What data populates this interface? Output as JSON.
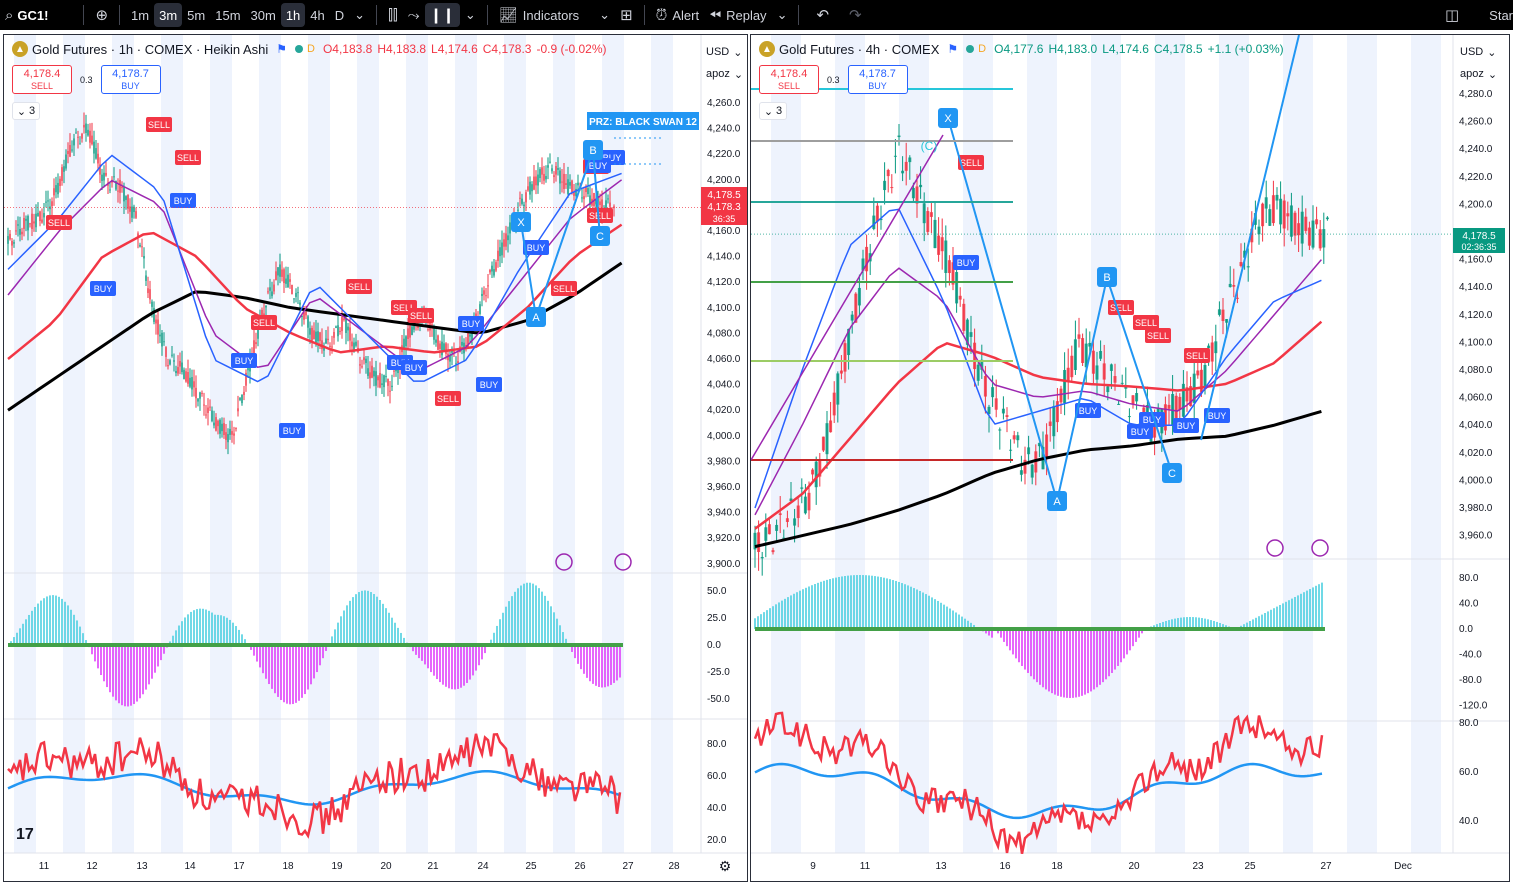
{
  "toolbar": {
    "symbol": "GC1!",
    "timeframes": [
      "1m",
      "3m",
      "5m",
      "15m",
      "30m",
      "1h",
      "4h",
      "D"
    ],
    "active_timeframes": [
      "3m",
      "1h"
    ],
    "indicators_label": "Indicators",
    "alert_label": "Alert",
    "replay_label": "Replay",
    "right_label": "Star"
  },
  "left_pane": {
    "title": "Gold Futures · 1h · COMEX · Heikin Ashi",
    "ohlc": {
      "open": "O4,183.8",
      "high": "H4,183.8",
      "low": "L4,174.6",
      "close": "C4,178.3",
      "change": "-0.9 (-0.02%)"
    },
    "sell_price": "4,178.4",
    "sell_label": "SELL",
    "buy_price": "4,178.7",
    "buy_label": "BUY",
    "spread": "0.3",
    "collapse_count": "3",
    "currency": "USD",
    "scale_mode": "apoz",
    "price_ticks": [
      "4,260.0",
      "4,240.0",
      "4,220.0",
      "4,200.0",
      "4,180.0",
      "4,160.0",
      "4,140.0",
      "4,120.0",
      "4,100.0",
      "4,080.0",
      "4,060.0",
      "4,040.0",
      "4,020.0",
      "4,000.0",
      "3,980.0",
      "3,960.0",
      "3,940.0",
      "3,920.0",
      "3,900.0"
    ],
    "price_label_1": "4,178.5",
    "price_label_2": "4,178.3",
    "countdown": "36:35",
    "osc_ticks": [
      "50.0",
      "25.0",
      "0.0",
      "-25.0",
      "-50.0"
    ],
    "rsi_ticks": [
      "80.0",
      "60.0",
      "40.0",
      "20.0"
    ],
    "date_ticks": [
      "11",
      "12",
      "13",
      "14",
      "17",
      "18",
      "19",
      "20",
      "21",
      "24",
      "25",
      "26",
      "27",
      "28"
    ],
    "prz_label": "PRZ: BLACK SWAN 12",
    "pattern_points": [
      "X",
      "A",
      "B",
      "C"
    ],
    "signals": [
      "SELL",
      "SELL",
      "SELL",
      "BUY",
      "BUY",
      "SELL",
      "BUY",
      "BUY",
      "SELL",
      "SELL",
      "SELL",
      "BUY",
      "BUY",
      "BUY",
      "SELL",
      "BUY",
      "BUY",
      "SELL",
      "BUY",
      "SELL",
      "SELL",
      "BUY"
    ]
  },
  "right_pane": {
    "title": "Gold Futures · 4h · COMEX",
    "ohlc": {
      "open": "O4,177.6",
      "high": "H4,183.0",
      "low": "L4,174.6",
      "close": "C4,178.5",
      "change": "+1.1 (+0.03%)"
    },
    "sell_price": "4,178.4",
    "sell_label": "SELL",
    "buy_price": "4,178.7",
    "buy_label": "BUY",
    "spread": "0.3",
    "collapse_count": "3",
    "currency": "USD",
    "scale_mode": "apoz",
    "price_ticks": [
      "4,280.0",
      "4,260.0",
      "4,240.0",
      "4,220.0",
      "4,200.0",
      "4,180.0",
      "4,160.0",
      "4,140.0",
      "4,120.0",
      "4,100.0",
      "4,080.0",
      "4,060.0",
      "4,040.0",
      "4,020.0",
      "4,000.0",
      "3,980.0",
      "3,960.0"
    ],
    "price_label": "4,178.5",
    "countdown": "02:36:35",
    "osc_ticks": [
      "80.0",
      "40.0",
      "0.0",
      "-40.0",
      "-80.0",
      "-120.0"
    ],
    "rsi_ticks": [
      "80.0",
      "60.0",
      "40.0"
    ],
    "date_ticks": [
      "9",
      "11",
      "13",
      "16",
      "18",
      "20",
      "23",
      "25",
      "27",
      "Dec"
    ],
    "pattern_points": [
      "X",
      "A",
      "B",
      "C"
    ],
    "pattern_c_label": "(C)",
    "signals": [
      "SELL",
      "BUY",
      "SELL",
      "SELL",
      "SELL",
      "BUY",
      "BUY",
      "BUY",
      "BUY",
      "SELL",
      "BUY"
    ]
  },
  "colors": {
    "bull": "#089981",
    "bear": "#f23645",
    "accent": "#2962ff",
    "ma_black": "#000000",
    "ma_red": "#f23645",
    "ma_purple": "#9c27b0",
    "ma_blue": "#2962ff",
    "osc_cyan": "#4dd0e1",
    "osc_magenta": "#e040fb",
    "rsi_blue": "#2196f3",
    "rsi_red": "#f23645"
  },
  "icons": [
    "search-icon",
    "plus-icon",
    "chevron-down-icon",
    "bar-style-icon",
    "line-style-icon",
    "candles-icon",
    "indicators-icon",
    "templates-icon",
    "alert-icon",
    "replay-icon",
    "undo-icon",
    "redo-icon",
    "layout-icon",
    "gold-symbol-icon",
    "flag-icon",
    "tradingview-logo-icon",
    "settings-icon"
  ]
}
